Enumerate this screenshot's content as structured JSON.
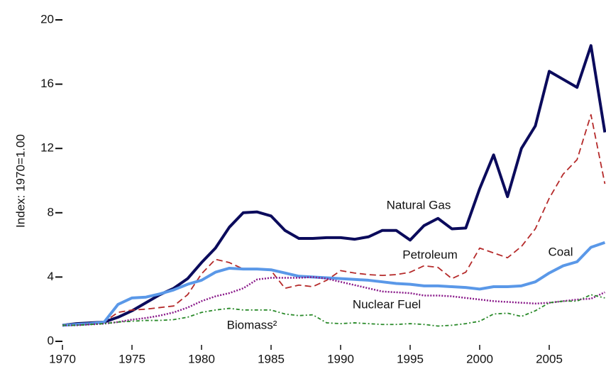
{
  "chart_data": {
    "type": "line",
    "ylabel": "Index:  1970=1.00",
    "x": [
      1970,
      1971,
      1972,
      1973,
      1974,
      1975,
      1976,
      1977,
      1978,
      1979,
      1980,
      1981,
      1982,
      1983,
      1984,
      1985,
      1986,
      1987,
      1988,
      1989,
      1990,
      1991,
      1992,
      1993,
      1994,
      1995,
      1996,
      1997,
      1998,
      1999,
      2000,
      2001,
      2002,
      2003,
      2004,
      2005,
      2006,
      2007,
      2008,
      2009
    ],
    "xlim": [
      1970,
      2009
    ],
    "xticks": [
      1970,
      1975,
      1980,
      1985,
      1990,
      1995,
      2000,
      2005
    ],
    "ylim": [
      0,
      20
    ],
    "yticks": [
      0,
      4,
      8,
      12,
      16,
      20
    ],
    "series": [
      {
        "name": "Natural Gas",
        "color": "#0b0b5c",
        "width": 4,
        "dash": "none",
        "values": [
          1.0,
          1.1,
          1.15,
          1.2,
          1.5,
          1.9,
          2.4,
          2.9,
          3.3,
          3.9,
          4.9,
          5.8,
          7.1,
          8.0,
          8.05,
          7.8,
          6.9,
          6.4,
          6.4,
          6.45,
          6.45,
          6.35,
          6.5,
          6.9,
          6.9,
          6.3,
          7.2,
          7.65,
          7.0,
          7.05,
          9.5,
          11.6,
          9.0,
          12.0,
          13.4,
          16.8,
          16.3,
          15.8,
          18.4,
          13.0
        ]
      },
      {
        "name": "Petroleum",
        "color": "#b52a2a",
        "width": 1.8,
        "dash": "9 5",
        "values": [
          1.0,
          1.05,
          1.1,
          1.2,
          1.8,
          1.95,
          2.0,
          2.1,
          2.2,
          2.9,
          4.2,
          5.1,
          4.9,
          4.5,
          4.5,
          4.4,
          3.3,
          3.5,
          3.4,
          3.8,
          4.4,
          4.25,
          4.15,
          4.1,
          4.15,
          4.3,
          4.7,
          4.6,
          3.9,
          4.3,
          5.8,
          5.5,
          5.2,
          5.9,
          7.0,
          8.9,
          10.4,
          11.3,
          14.1,
          9.8
        ]
      },
      {
        "name": "Coal",
        "color": "#5a98e8",
        "width": 4,
        "dash": "none",
        "values": [
          1.0,
          1.05,
          1.1,
          1.2,
          2.3,
          2.7,
          2.75,
          2.95,
          3.2,
          3.55,
          3.8,
          4.3,
          4.55,
          4.5,
          4.5,
          4.45,
          4.25,
          4.05,
          4.0,
          3.95,
          3.9,
          3.85,
          3.8,
          3.7,
          3.6,
          3.55,
          3.45,
          3.45,
          3.4,
          3.35,
          3.25,
          3.4,
          3.4,
          3.45,
          3.7,
          4.25,
          4.7,
          4.95,
          5.85,
          6.15
        ]
      },
      {
        "name": "Nuclear Fuel",
        "color": "#8a1a8a",
        "width": 2.5,
        "dash": "2 2",
        "values": [
          1.0,
          1.0,
          1.05,
          1.1,
          1.2,
          1.35,
          1.45,
          1.6,
          1.8,
          2.1,
          2.5,
          2.8,
          3.0,
          3.3,
          3.85,
          3.95,
          3.95,
          3.95,
          4.0,
          3.9,
          3.7,
          3.5,
          3.3,
          3.1,
          3.05,
          3.0,
          2.85,
          2.85,
          2.8,
          2.7,
          2.6,
          2.5,
          2.45,
          2.4,
          2.35,
          2.4,
          2.5,
          2.6,
          2.65,
          3.05
        ]
      },
      {
        "name": "Biomass²",
        "color": "#2a8a2a",
        "width": 1.8,
        "dash": "5 3 2 3",
        "values": [
          1.0,
          1.0,
          1.05,
          1.1,
          1.2,
          1.25,
          1.3,
          1.3,
          1.35,
          1.5,
          1.8,
          1.95,
          2.05,
          1.95,
          1.95,
          1.95,
          1.7,
          1.6,
          1.65,
          1.15,
          1.1,
          1.15,
          1.1,
          1.05,
          1.05,
          1.1,
          1.05,
          0.95,
          1.0,
          1.1,
          1.25,
          1.7,
          1.75,
          1.55,
          1.9,
          2.4,
          2.5,
          2.5,
          2.9,
          2.7
        ]
      }
    ]
  }
}
